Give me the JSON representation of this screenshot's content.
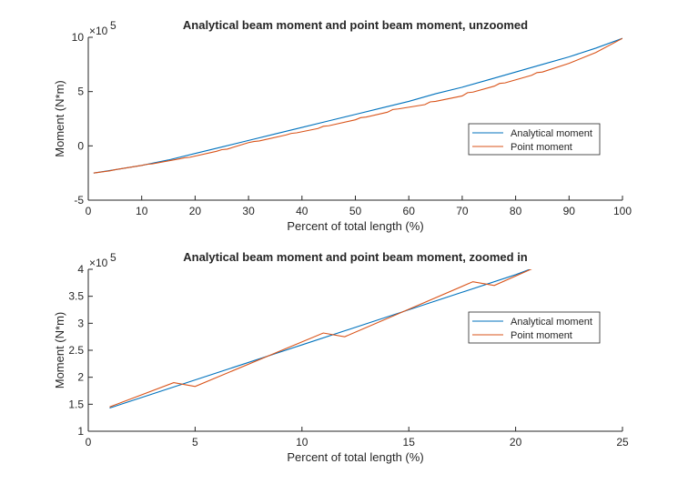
{
  "chart_data": [
    {
      "type": "line",
      "title": "Analytical beam moment and point beam moment, unzoomed",
      "xlabel": "Percent of total length (%)",
      "ylabel": "Moment (N*m)",
      "y_exponent_base": "×10",
      "y_exponent_power": "5",
      "xlim": [
        0,
        100
      ],
      "ylim": [
        -5,
        10
      ],
      "xticks": [
        0,
        10,
        20,
        30,
        40,
        50,
        60,
        70,
        80,
        90,
        100
      ],
      "yticks": [
        -5,
        0,
        5,
        10
      ],
      "legend_position": "right",
      "series": [
        {
          "name": "Analytical moment",
          "color": "#0072BD",
          "x": [
            1,
            5,
            10,
            15,
            20,
            25,
            30,
            35,
            40,
            45,
            50,
            55,
            60,
            65,
            70,
            75,
            80,
            85,
            90,
            95,
            100
          ],
          "y": [
            -2.5,
            -2.2,
            -1.8,
            -1.3,
            -0.7,
            -0.1,
            0.5,
            1.1,
            1.7,
            2.3,
            2.9,
            3.5,
            4.1,
            4.8,
            5.4,
            6.1,
            6.8,
            7.5,
            8.2,
            9.0,
            9.9
          ]
        },
        {
          "name": "Point moment",
          "color": "#D95319",
          "x": [
            1,
            4,
            5,
            10,
            11,
            12,
            17,
            18,
            19,
            24,
            25,
            26,
            30,
            31,
            32,
            37,
            38,
            39,
            43,
            44,
            45,
            50,
            51,
            52,
            56,
            57,
            58,
            63,
            64,
            65,
            70,
            71,
            72,
            76,
            77,
            78,
            83,
            84,
            85,
            90,
            95,
            100
          ],
          "y": [
            -2.5,
            -2.3,
            -2.2,
            -1.8,
            -1.7,
            -1.65,
            -1.2,
            -1.1,
            -1.05,
            -0.5,
            -0.35,
            -0.3,
            0.3,
            0.4,
            0.45,
            1.0,
            1.15,
            1.2,
            1.6,
            1.8,
            1.85,
            2.4,
            2.6,
            2.65,
            3.1,
            3.35,
            3.4,
            3.8,
            4.05,
            4.1,
            4.6,
            4.9,
            4.95,
            5.5,
            5.75,
            5.8,
            6.5,
            6.75,
            6.8,
            7.6,
            8.6,
            9.9
          ]
        }
      ]
    },
    {
      "type": "line",
      "title": "Analytical beam moment and point beam moment, zoomed in",
      "xlabel": "Percent of total length (%)",
      "ylabel": "Moment (N*m)",
      "y_exponent_base": "×10",
      "y_exponent_power": "5",
      "xlim": [
        0,
        25
      ],
      "ylim": [
        1,
        4
      ],
      "xticks": [
        0,
        5,
        10,
        15,
        20,
        25
      ],
      "yticks": [
        1,
        1.5,
        2,
        2.5,
        3,
        3.5,
        4
      ],
      "legend_position": "right",
      "series": [
        {
          "name": "Analytical moment",
          "color": "#0072BD",
          "x": [
            1,
            5,
            10,
            15,
            20,
            21
          ],
          "y": [
            1.43,
            1.95,
            2.6,
            3.25,
            3.9,
            4.05
          ]
        },
        {
          "name": "Point moment",
          "color": "#D95319",
          "x": [
            1,
            4,
            5,
            11,
            12,
            18,
            19,
            21
          ],
          "y": [
            1.45,
            1.9,
            1.83,
            2.82,
            2.75,
            3.77,
            3.7,
            4.05
          ]
        }
      ]
    }
  ]
}
